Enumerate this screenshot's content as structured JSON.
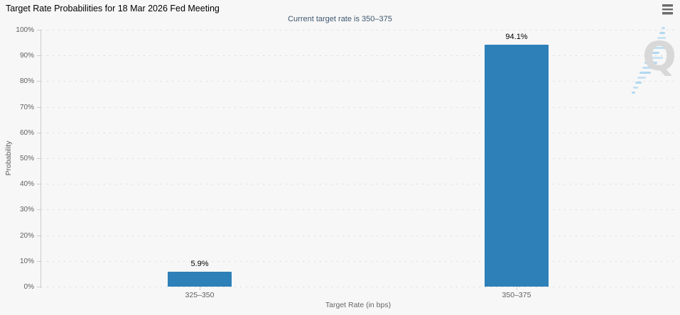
{
  "chart": {
    "title": "Target Rate Probabilities for 18 Mar 2026 Fed Meeting",
    "subtitle": "Current target rate is 350–375",
    "watermark_letter": "Q",
    "menu_icon": "hamburger-menu-icon"
  },
  "chart_data": {
    "type": "bar",
    "title": "Target Rate Probabilities for 18 Mar 2026 Fed Meeting",
    "subtitle": "Current target rate is 350–375",
    "categories": [
      "325–350",
      "350–375"
    ],
    "values": [
      5.9,
      94.1
    ],
    "value_labels": [
      "5.9%",
      "94.1%"
    ],
    "xlabel": "Target Rate (in bps)",
    "ylabel": "Probability",
    "ylim": [
      0,
      100
    ],
    "ytick_step": 10,
    "ytick_labels": [
      "0%",
      "10%",
      "20%",
      "30%",
      "40%",
      "50%",
      "60%",
      "70%",
      "80%",
      "90%",
      "100%"
    ],
    "grid": "dotted horizontal gridlines",
    "legend": "none",
    "colors": {
      "bar": "#2e80b9",
      "background": "#f7f7f7",
      "gridline": "#dcdcdc",
      "axis_line": "#cccccc",
      "axis_label": "#606060",
      "subtitle": "#3e576f",
      "title": "#000000",
      "watermark_q": "#d8d8d8",
      "watermark_slash": "#a8d3ef"
    }
  }
}
